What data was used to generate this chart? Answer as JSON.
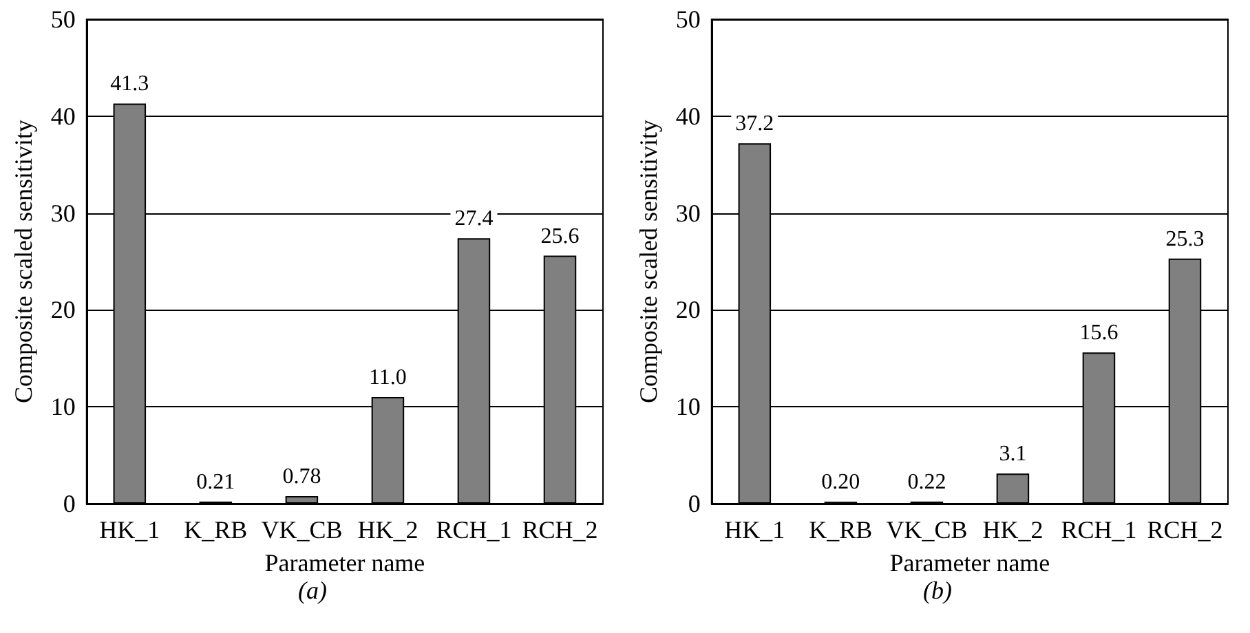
{
  "chart_data": [
    {
      "type": "bar",
      "xlabel": "Parameter name",
      "ylabel": "Composite scaled sensitivity",
      "categories": [
        "HK_1",
        "K_RB",
        "VK_CB",
        "HK_2",
        "RCH_1",
        "RCH_2"
      ],
      "values": [
        41.3,
        0.21,
        0.78,
        11.0,
        27.4,
        25.6
      ],
      "value_labels": [
        "41.3",
        "0.21",
        "0.78",
        "11.0",
        "27.4",
        "25.6"
      ],
      "color": "#808080",
      "ylim": [
        0,
        50
      ],
      "yticks": [
        0,
        10,
        20,
        30,
        40,
        50
      ],
      "grid": "y",
      "annotations": [
        "(a)"
      ]
    },
    {
      "type": "bar",
      "xlabel": "Parameter name",
      "ylabel": "Composite scaled sensitivity",
      "categories": [
        "HK_1",
        "K_RB",
        "VK_CB",
        "HK_2",
        "RCH_1",
        "RCH_2"
      ],
      "values": [
        37.2,
        0.2,
        0.22,
        3.1,
        15.6,
        25.3
      ],
      "value_labels": [
        "37.2",
        "0.20",
        "0.22",
        "3.1",
        "15.6",
        "25.3"
      ],
      "color": "#808080",
      "ylim": [
        0,
        50
      ],
      "yticks": [
        0,
        10,
        20,
        30,
        40,
        50
      ],
      "grid": "y",
      "annotations": [
        "(b)"
      ]
    }
  ]
}
